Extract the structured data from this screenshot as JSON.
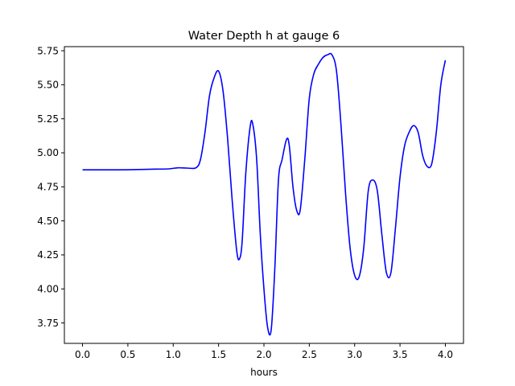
{
  "chart_data": {
    "type": "line",
    "title": "Water Depth h at gauge 6",
    "xlabel": "hours",
    "ylabel": "",
    "xlim": [
      -0.2,
      4.2
    ],
    "ylim": [
      3.6,
      5.78
    ],
    "xticks": [
      0.0,
      0.5,
      1.0,
      1.5,
      2.0,
      2.5,
      3.0,
      3.5,
      4.0
    ],
    "xtick_labels": [
      "0.0",
      "0.5",
      "1.0",
      "1.5",
      "2.0",
      "2.5",
      "3.0",
      "3.5",
      "4.0"
    ],
    "yticks": [
      3.75,
      4.0,
      4.25,
      4.5,
      4.75,
      5.0,
      5.25,
      5.5,
      5.75
    ],
    "ytick_labels": [
      "3.75",
      "4.00",
      "4.25",
      "4.50",
      "4.75",
      "5.00",
      "5.25",
      "5.50",
      "5.75"
    ],
    "grid": false,
    "series": [
      {
        "color": "#0000ff",
        "x": [
          0.0,
          0.2,
          0.4,
          0.6,
          0.8,
          0.95,
          1.05,
          1.15,
          1.25,
          1.3,
          1.35,
          1.4,
          1.45,
          1.5,
          1.55,
          1.6,
          1.65,
          1.7,
          1.73,
          1.76,
          1.8,
          1.85,
          1.88,
          1.92,
          1.96,
          2.0,
          2.04,
          2.08,
          2.12,
          2.16,
          2.2,
          2.25,
          2.28,
          2.32,
          2.36,
          2.4,
          2.45,
          2.5,
          2.55,
          2.6,
          2.65,
          2.7,
          2.75,
          2.8,
          2.85,
          2.9,
          2.95,
          3.0,
          3.05,
          3.1,
          3.15,
          3.2,
          3.25,
          3.3,
          3.35,
          3.4,
          3.45,
          3.5,
          3.55,
          3.6,
          3.65,
          3.7,
          3.75,
          3.8,
          3.85,
          3.9,
          3.95,
          4.0
        ],
        "y": [
          4.875,
          4.875,
          4.875,
          4.877,
          4.88,
          4.882,
          4.89,
          4.888,
          4.89,
          4.95,
          5.15,
          5.42,
          5.55,
          5.6,
          5.45,
          5.1,
          4.65,
          4.28,
          4.22,
          4.35,
          4.85,
          5.2,
          5.2,
          4.95,
          4.4,
          4.0,
          3.72,
          3.7,
          4.15,
          4.8,
          4.95,
          5.1,
          5.05,
          4.75,
          4.58,
          4.58,
          4.95,
          5.4,
          5.58,
          5.65,
          5.7,
          5.72,
          5.72,
          5.6,
          5.2,
          4.7,
          4.3,
          4.1,
          4.09,
          4.3,
          4.72,
          4.8,
          4.72,
          4.4,
          4.12,
          4.12,
          4.45,
          4.82,
          5.05,
          5.15,
          5.2,
          5.15,
          4.98,
          4.9,
          4.92,
          5.15,
          5.5,
          5.68
        ]
      }
    ]
  }
}
